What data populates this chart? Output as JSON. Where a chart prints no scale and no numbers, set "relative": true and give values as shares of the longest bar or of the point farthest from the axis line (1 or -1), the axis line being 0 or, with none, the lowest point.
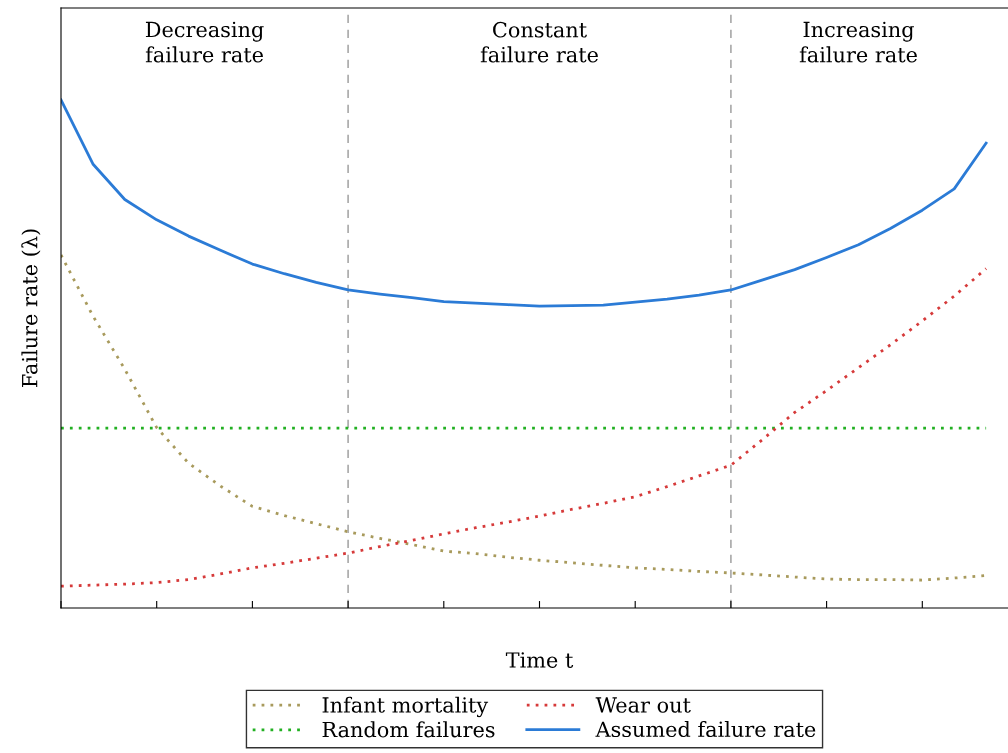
{
  "chart_data": {
    "type": "line",
    "relative": true,
    "xlabel": "Time t",
    "ylabel": "Failure rate (λ)",
    "annotations": [
      "Decreasing\nfailure rate",
      "Constant\nfailure rate",
      "Increasing\nfailure rate"
    ],
    "categories": [
      null,
      null,
      null,
      null,
      null,
      null,
      null,
      null,
      null,
      null,
      null,
      null,
      null,
      null,
      null,
      null,
      null,
      null,
      null,
      null,
      null,
      null,
      null,
      null,
      null,
      null,
      null,
      null,
      null,
      null
    ],
    "legend": "bottom",
    "series": [
      {
        "name": "Infant mortality",
        "color": "#a89a5c",
        "line_style": "dotted",
        "values": [
          0.695,
          0.575,
          0.47,
          0.355,
          0.285,
          0.24,
          0.2,
          0.182,
          0.166,
          0.15,
          0.137,
          0.125,
          0.112,
          0.107,
          0.1,
          0.094,
          0.089,
          0.084,
          0.079,
          0.076,
          0.072,
          0.069,
          0.065,
          0.061,
          0.057,
          0.056,
          0.056,
          0.055,
          0.059,
          0.064
        ]
      },
      {
        "name": "Random failures",
        "color": "#22b022",
        "line_style": "dotted",
        "values": [
          0.354,
          0.354,
          0.354,
          0.354,
          0.354,
          0.354,
          0.354,
          0.354,
          0.354,
          0.354,
          0.354,
          0.354,
          0.354,
          0.354,
          0.354,
          0.354,
          0.354,
          0.354,
          0.354,
          0.354,
          0.354,
          0.354,
          0.354,
          0.354,
          0.354,
          0.354,
          0.354,
          0.354,
          0.354,
          0.354
        ]
      },
      {
        "name": "Wear out",
        "color": "#d63a3a",
        "line_style": "dotted",
        "values": [
          0.043,
          0.045,
          0.047,
          0.05,
          0.056,
          0.067,
          0.079,
          0.088,
          0.098,
          0.108,
          0.121,
          0.133,
          0.146,
          0.158,
          0.169,
          0.181,
          0.194,
          0.206,
          0.219,
          0.239,
          0.26,
          0.281,
          0.332,
          0.385,
          0.428,
          0.473,
          0.518,
          0.565,
          0.614,
          0.668
        ]
      },
      {
        "name": "Assumed failure rate",
        "color": "#2b7bd6",
        "line_style": "solid",
        "values": [
          1,
          0.874,
          0.804,
          0.764,
          0.732,
          0.704,
          0.677,
          0.658,
          0.641,
          0.626,
          0.618,
          0.611,
          0.603,
          0.6,
          0.597,
          0.594,
          0.595,
          0.596,
          0.602,
          0.608,
          0.616,
          0.626,
          0.646,
          0.666,
          0.69,
          0.715,
          0.747,
          0.783,
          0.825,
          0.915
        ]
      }
    ]
  }
}
